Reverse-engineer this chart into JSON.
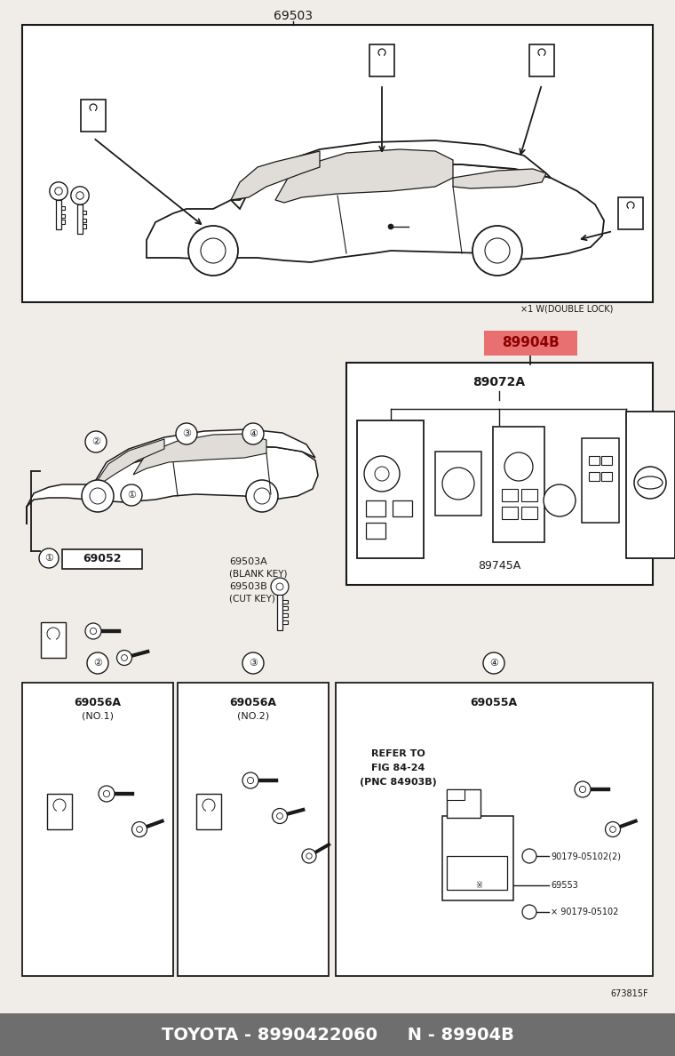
{
  "title_bottom": "TOYOTA - 8990422060     N - 89904B",
  "bottom_bar_color": "#6e6e6e",
  "bottom_bar_text_color": "#ffffff",
  "bg_color": "#f0ede8",
  "border_color": "#1a1a1a",
  "text_color": "#1a1a1a",
  "highlight_box_color": "#e87070",
  "highlight_box_text": "89904B",
  "highlight_box_text_color": "#8b0000",
  "labels": {
    "main_code": "69503",
    "remote_code": "89904B",
    "remote_sub_code": "89072A",
    "remote_sub2": "89745A",
    "double_lock": "×1 W(DOUBLE LOCK)",
    "grp1_code": "69052",
    "grp2_code": "69056A",
    "grp2_sub": "(NO.1)",
    "grp3_code": "69056A",
    "grp3_sub": "(NO.2)",
    "grp4_code": "69055A",
    "sub_a": "69503A",
    "sub_a2": "(BLANK KEY)",
    "sub_b": "69503B",
    "sub_b2": "(CUT KEY)",
    "refer1": "REFER TO",
    "refer2": "FIG 84-24",
    "refer3": "(PNC 84903B)",
    "p1": "90179-05102(2)",
    "p2": "×69553",
    "p3": "× 90179-05102",
    "fig": "673815F",
    "c1": "①",
    "c2": "②",
    "c3": "③",
    "c4": "④"
  }
}
